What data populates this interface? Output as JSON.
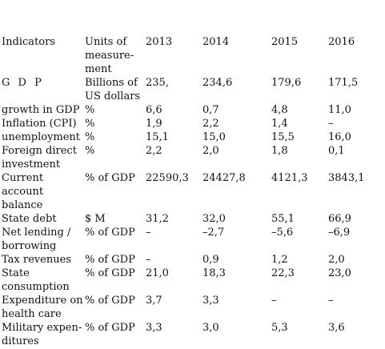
{
  "header": {
    "indicators": "Indicators",
    "units": "Units of measure-ment",
    "years": [
      "2013",
      "2014",
      "2015",
      "2016"
    ]
  },
  "rows": [
    {
      "indicator": "G D P",
      "unit": "Billions of US dollars",
      "values": [
        "235,",
        "234,6",
        "179,6",
        "171,5"
      ]
    },
    {
      "indicator": "growth in GDP",
      "unit": "%",
      "values": [
        "6,6",
        "0,7",
        "4,8",
        "11,0"
      ]
    },
    {
      "indicator": "Inflation (CPI)",
      "unit": "%",
      "values": [
        "1,9",
        "2,2",
        "1,4",
        "–"
      ]
    },
    {
      "indicator": "unemployment",
      "unit": "%",
      "values": [
        "15,1",
        "15,0",
        "15,5",
        "16,0"
      ]
    },
    {
      "indicator": "Foreign direct investment",
      "unit": "%",
      "values": [
        "2,2",
        "2,0",
        "1,8",
        "0,1"
      ]
    },
    {
      "indicator": "Current account balance",
      "unit": "% of GDP",
      "values": [
        "22590,3",
        "24427,8",
        "4121,3",
        "3843,1"
      ]
    },
    {
      "indicator": "State debt",
      "unit": "$ M",
      "values": [
        "31,2",
        "32,0",
        "55,1",
        "66,9"
      ]
    },
    {
      "indicator": "Net lending / borrowing",
      "unit": "% of GDP",
      "values": [
        "–",
        "–2,7",
        "–5,6",
        "–6,9"
      ]
    },
    {
      "indicator": "Tax revenues",
      "unit": "% of GDP",
      "values": [
        "–",
        "0,9",
        "1,2",
        "2,0"
      ]
    },
    {
      "indicator": "State consumption",
      "unit": "% of GDP",
      "values": [
        "21,0",
        "18,3",
        "22,3",
        "23,0"
      ]
    },
    {
      "indicator": "Expenditure on health care",
      "unit": "% of GDP",
      "values": [
        "3,7",
        "3,3",
        "–",
        "–"
      ]
    },
    {
      "indicator": "Military expen- ditures",
      "unit": "% of GDP",
      "values": [
        "3,3",
        "3,0",
        "5,3",
        "3,6"
      ]
    }
  ]
}
